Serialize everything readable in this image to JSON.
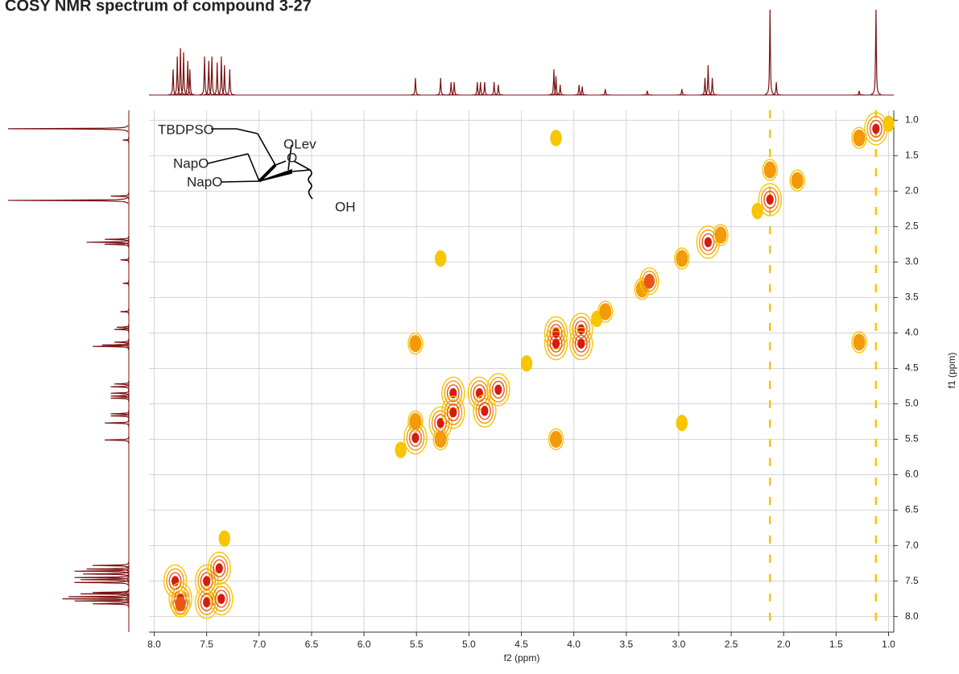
{
  "chart_data": {
    "type": "cosy",
    "title": "COSY NMR spectrum of compound 3-27",
    "x_label": "f2 (ppm)",
    "y_label": "f1 (ppm)",
    "xlim": [
      8.05,
      0.95
    ],
    "ylim": [
      0.86,
      8.22
    ],
    "xticks": [
      {
        "value": 8,
        "label": "8.0"
      },
      {
        "value": 7.5,
        "label": "7.5"
      },
      {
        "value": 7,
        "label": "7.0"
      },
      {
        "value": 6.5,
        "label": "6.5"
      },
      {
        "value": 6,
        "label": "6.0"
      },
      {
        "value": 5.5,
        "label": "5.5"
      },
      {
        "value": 5,
        "label": "5.0"
      },
      {
        "value": 4.5,
        "label": "4.5"
      },
      {
        "value": 4,
        "label": "4.0"
      },
      {
        "value": 3.5,
        "label": "3.5"
      },
      {
        "value": 3,
        "label": "3.0"
      },
      {
        "value": 2.5,
        "label": "2.5"
      },
      {
        "value": 2,
        "label": "2.0"
      },
      {
        "value": 1.5,
        "label": "1.5"
      },
      {
        "value": 1,
        "label": "1.0"
      }
    ],
    "yticks": [
      {
        "value": 1,
        "label": "1.0"
      },
      {
        "value": 1.5,
        "label": "1.5"
      },
      {
        "value": 2,
        "label": "2.0"
      },
      {
        "value": 2.5,
        "label": "2.5"
      },
      {
        "value": 3,
        "label": "3.0"
      },
      {
        "value": 3.5,
        "label": "3.5"
      },
      {
        "value": 4,
        "label": "4.0"
      },
      {
        "value": 4.5,
        "label": "4.5"
      },
      {
        "value": 5,
        "label": "5.0"
      },
      {
        "value": 5.5,
        "label": "5.5"
      },
      {
        "value": 6,
        "label": "6.0"
      },
      {
        "value": 6.5,
        "label": "6.5"
      },
      {
        "value": 7,
        "label": "7.0"
      },
      {
        "value": 7.5,
        "label": "7.5"
      },
      {
        "value": 8,
        "label": "8.0"
      }
    ],
    "grid": true,
    "contour_colors": [
      "#f7c600",
      "#f39a0c",
      "#e8561a",
      "#d41c12"
    ],
    "trace_color": "#7a1010",
    "annotations": [
      "TBDPSO",
      "OLev",
      "O",
      "NapO",
      "NapO",
      "OH"
    ],
    "projection": {
      "ppm": [
        7.82,
        7.78,
        7.75,
        7.72,
        7.68,
        7.66,
        7.52,
        7.48,
        7.45,
        7.4,
        7.36,
        7.33,
        7.28,
        5.51,
        5.27,
        5.17,
        5.14,
        4.92,
        4.89,
        4.85,
        4.76,
        4.72,
        4.19,
        4.17,
        4.13,
        3.95,
        3.92,
        3.7,
        3.3,
        2.97,
        2.75,
        2.72,
        2.68,
        2.13,
        2.07,
        1.28,
        1.12
      ],
      "heights": [
        30,
        45,
        55,
        50,
        40,
        30,
        45,
        40,
        45,
        38,
        45,
        35,
        30,
        20,
        20,
        15,
        15,
        15,
        15,
        15,
        15,
        12,
        30,
        22,
        12,
        12,
        10,
        7,
        5,
        7,
        20,
        35,
        20,
        100,
        15,
        5,
        100
      ]
    },
    "t1_noise_f2": [
      2.13,
      1.12
    ],
    "peaks": {
      "f2": [
        7.8,
        7.75,
        7.75,
        7.5,
        7.5,
        7.38,
        7.36,
        7.33,
        5.65,
        5.51,
        5.51,
        5.51,
        5.27,
        5.27,
        5.27,
        5.15,
        5.15,
        4.9,
        4.85,
        4.72,
        4.45,
        4.17,
        4.17,
        4.17,
        4.17,
        3.93,
        3.93,
        3.78,
        3.7,
        3.35,
        3.28,
        2.97,
        2.97,
        2.72,
        2.6,
        2.25,
        2.13,
        2.13,
        1.87,
        1.28,
        1.28,
        1.12,
        1.0
      ],
      "f1": [
        7.5,
        7.75,
        7.82,
        7.5,
        7.8,
        7.32,
        7.75,
        6.9,
        5.65,
        5.48,
        4.15,
        5.25,
        5.27,
        2.95,
        5.5,
        4.85,
        5.12,
        4.85,
        5.1,
        4.8,
        4.43,
        4.0,
        4.15,
        5.5,
        1.25,
        3.95,
        4.15,
        3.8,
        3.7,
        3.38,
        3.27,
        2.95,
        5.27,
        2.72,
        2.62,
        2.28,
        2.12,
        1.7,
        1.85,
        1.25,
        4.13,
        1.12,
        1.05
      ],
      "levels": [
        4,
        4,
        3,
        4,
        4,
        4,
        4,
        1,
        1,
        4,
        2,
        2,
        4,
        1,
        2,
        4,
        4,
        4,
        4,
        4,
        1,
        4,
        4,
        2,
        1,
        4,
        4,
        1,
        2,
        2,
        3,
        2,
        1,
        4,
        2,
        1,
        4,
        2,
        2,
        2,
        2,
        4,
        1
      ]
    }
  }
}
